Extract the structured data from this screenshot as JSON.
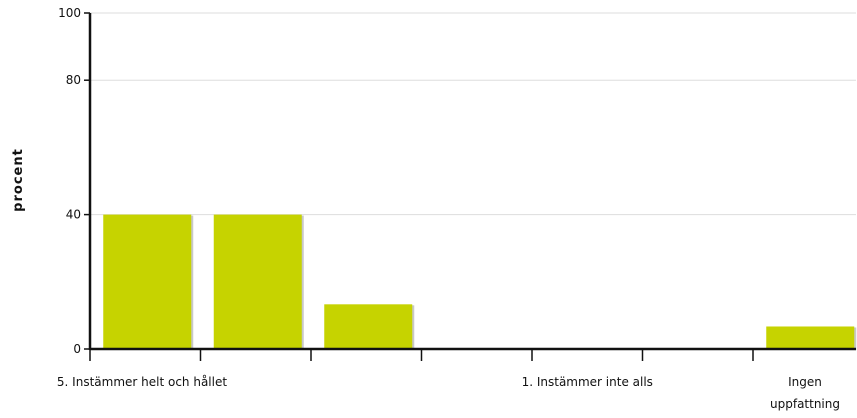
{
  "chart_data": {
    "type": "bar",
    "ylabel": "procent",
    "xlabel": "",
    "title": "",
    "ylim": [
      0,
      100
    ],
    "y_ticks": [
      0,
      40,
      80,
      100
    ],
    "grid": true,
    "categories": [
      "5. Instämmer helt och hållet",
      "",
      "",
      "",
      "1. Instämmer inte alls",
      "",
      "Ingen uppfattning"
    ],
    "category_label_lines": [
      [
        "5. Instämmer helt och hållet"
      ],
      [
        ""
      ],
      [
        ""
      ],
      [
        ""
      ],
      [
        "1. Instämmer inte alls"
      ],
      [
        ""
      ],
      [
        "Ingen",
        "uppfattning"
      ]
    ],
    "values": [
      40,
      40,
      13.3,
      0,
      0,
      0,
      6.7
    ],
    "colors": {
      "bar": "#c6d300",
      "bar_shadow": "#c8c8c8",
      "axis": "#111111",
      "grid": "#dddddd"
    }
  }
}
